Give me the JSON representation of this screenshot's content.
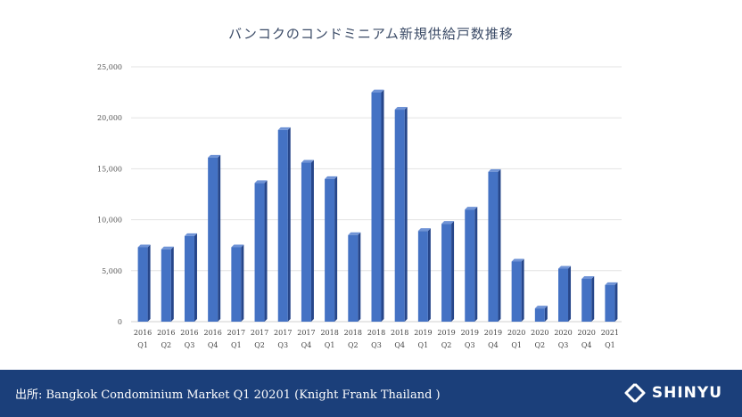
{
  "chart_data": {
    "type": "bar",
    "title": "バンコクのコンドミニアム新規供給戸数推移",
    "categories": [
      [
        "2016",
        "Q1"
      ],
      [
        "2016",
        "Q2"
      ],
      [
        "2016",
        "Q3"
      ],
      [
        "2016",
        "Q4"
      ],
      [
        "2017",
        "Q1"
      ],
      [
        "2017",
        "Q2"
      ],
      [
        "2017",
        "Q3"
      ],
      [
        "2017",
        "Q4"
      ],
      [
        "2018",
        "Q1"
      ],
      [
        "2018",
        "Q2"
      ],
      [
        "2018",
        "Q3"
      ],
      [
        "2018",
        "Q4"
      ],
      [
        "2019",
        "Q1"
      ],
      [
        "2019",
        "Q2"
      ],
      [
        "2019",
        "Q3"
      ],
      [
        "2019",
        "Q4"
      ],
      [
        "2020",
        "Q1"
      ],
      [
        "2020",
        "Q2"
      ],
      [
        "2020",
        "Q3"
      ],
      [
        "2020",
        "Q4"
      ],
      [
        "2021",
        "Q1"
      ]
    ],
    "values": [
      7300,
      7100,
      8400,
      16100,
      7300,
      13600,
      18800,
      15600,
      14000,
      8500,
      22500,
      20800,
      8900,
      9600,
      11000,
      14700,
      5900,
      1300,
      5200,
      4200,
      3600
    ],
    "ylim": [
      0,
      25000
    ],
    "yticks": [
      "0",
      "5,000",
      "10,000",
      "15,000",
      "20,000",
      "25,000"
    ],
    "ytick_values": [
      0,
      5000,
      10000,
      15000,
      20000,
      25000
    ],
    "grid": true,
    "bar_color": "#4472c4"
  },
  "footer": {
    "source": "出所: Bangkok Condominium Market Q1 20201 (Knight Frank Thailand )",
    "logo_text": "SHINYU"
  }
}
